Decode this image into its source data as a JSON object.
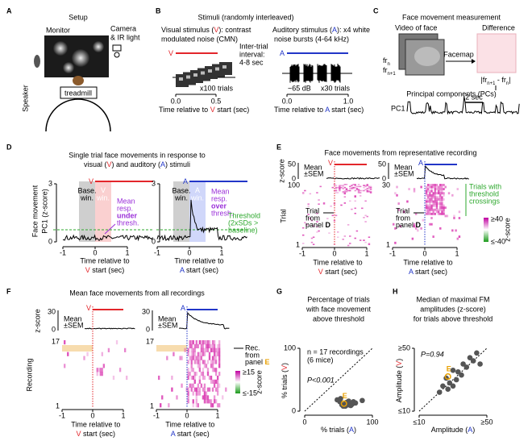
{
  "A": {
    "letter": "A",
    "title": "Setup",
    "monitor": "Monitor",
    "camera": "Camera",
    "ir": "& IR light",
    "speaker": "Speaker",
    "treadmill": "treadmill"
  },
  "B": {
    "letter": "B",
    "title": "Stimuli (randomly interleaved)",
    "vis1a": "Visual stimulus (",
    "V": "V",
    "vis1b": "): contrast",
    "vis2": "modulated noise (CMN)",
    "iti": [
      "Inter-trial",
      "interval:",
      "4-8 sec"
    ],
    "vtrials": "x100 trials",
    "vticks": [
      "0.0",
      "0.5"
    ],
    "aud1a": "Auditory stimulus (",
    "A": "A",
    "aud1b": "): x4 white",
    "aud2": "noise bursts (4-64 kHz)",
    "db": "~65 dB",
    "atrials": "x30 trials",
    "aticks": [
      "0.0",
      "1.0"
    ],
    "xlab": "Time relative to ",
    "xlab2": " start (sec)"
  },
  "C": {
    "letter": "C",
    "title": "Face movement measurement",
    "video": "Video of face",
    "diff": "Difference",
    "facemap": "Facemap",
    "fr": "fr",
    "n": "n",
    "n1": "n+1",
    "f1": "|fr",
    "f2": " - fr",
    "f3": "|",
    "pcs": "Principal components (PCs)",
    "pc1": "PC1",
    "scale": "2 sec"
  },
  "D": {
    "letter": "D",
    "title1": "Single trial face movements in response to",
    "t2a": "visual (",
    "V": "V",
    "t2b": ") and auditory (",
    "A": "A",
    "t2c": ") stimuli",
    "ylabel": [
      "Face movement",
      "PC1 (z-score)"
    ],
    "yticks": [
      "3",
      "0"
    ],
    "xticks": [
      "-1",
      "0",
      "1"
    ],
    "base": [
      "Base.",
      "win."
    ],
    "win": "win.",
    "under": [
      "Mean",
      "resp.",
      "under",
      "thresh."
    ],
    "over": [
      "Mean",
      "resp.",
      "over",
      "thresh."
    ],
    "thresh": [
      "Threshold",
      "(2xSDs >",
      "baseline)"
    ],
    "xlab": "Time relative to",
    "xlab2": " start (sec)"
  },
  "E": {
    "letter": "E",
    "title": "Face movements from representative recording",
    "mean": [
      "Mean",
      "±SEM"
    ],
    "zscore": "z-score",
    "meanticks": [
      "50",
      "0"
    ],
    "trial": "Trial",
    "vtrials": [
      "100",
      "1"
    ],
    "atrials": [
      "30",
      "1"
    ],
    "from": [
      "Trial",
      "from",
      "panel "
    ],
    "D": "D",
    "green": [
      "Trials with",
      "threshold",
      "crossings"
    ],
    "cbar": [
      "≥40",
      "≤-40"
    ],
    "xticks": [
      "-1",
      "0",
      "1"
    ],
    "V": "V",
    "A": "A"
  },
  "F": {
    "letter": "F",
    "title": "Mean face movements from all recordings",
    "mean": [
      "Mean",
      "±SEM"
    ],
    "zscore": "z-score",
    "meanticks": [
      "30",
      "0"
    ],
    "rec": [
      "17",
      "1"
    ],
    "recording": "Recording",
    "from": [
      "Rec.",
      "from",
      "panel "
    ],
    "E": "E",
    "cbar": [
      "≥15",
      "≤-15"
    ],
    "xticks": [
      "-1",
      "0",
      "1"
    ]
  },
  "G": {
    "letter": "G",
    "title": [
      "Percentage of trials",
      "with face movement",
      "above threshold"
    ],
    "note": [
      "n = 17 recordings",
      "(6 mice)"
    ],
    "p": "P<0.001",
    "ylab": "% trials (",
    "xlab": "% trials (",
    "close": ")",
    "V": "V",
    "A": "A",
    "xlim": [
      0,
      100
    ],
    "ylim": [
      0,
      100
    ],
    "xticks": [
      0,
      100
    ],
    "yticks": [
      0,
      100
    ],
    "color": "#555555",
    "x": [
      48,
      52,
      55,
      60,
      62,
      64,
      66,
      68,
      70,
      72,
      75,
      85,
      60,
      57,
      53,
      65
    ],
    "y": [
      18,
      15,
      10,
      8,
      14,
      10,
      12,
      9,
      11,
      15,
      13,
      17,
      12,
      8,
      20,
      16
    ],
    "E_point": {
      "x": 58,
      "y": 12,
      "label": "E",
      "color": "#e8a000"
    }
  },
  "H": {
    "letter": "H",
    "title": [
      "Median of maximal FM",
      "amplitudes (z-score)",
      "for trials above threshold"
    ],
    "p": "P=0.94",
    "ylab": "Amplitude (",
    "xlab": "Amplitude (",
    "close": ")",
    "V": "V",
    "A": "A",
    "xlim": [
      10,
      50
    ],
    "ylim": [
      10,
      50
    ],
    "xticks": [
      {
        "value": 10,
        "label": "≤10"
      },
      {
        "value": 50,
        "label": "≥50"
      }
    ],
    "yticks": [
      {
        "value": 10,
        "label": "≤10"
      },
      {
        "value": 50,
        "label": "≥50"
      }
    ],
    "color": "#555555",
    "x": [
      22,
      24,
      27,
      28,
      30,
      32,
      33,
      35,
      36,
      38,
      40,
      42,
      44,
      30,
      26,
      46
    ],
    "y": [
      22,
      26,
      24,
      28,
      26,
      30,
      35,
      33,
      40,
      38,
      44,
      42,
      47,
      36,
      31,
      40
    ],
    "E_point": {
      "x": 27,
      "y": 32,
      "label": "E",
      "color": "#e8a000"
    }
  }
}
